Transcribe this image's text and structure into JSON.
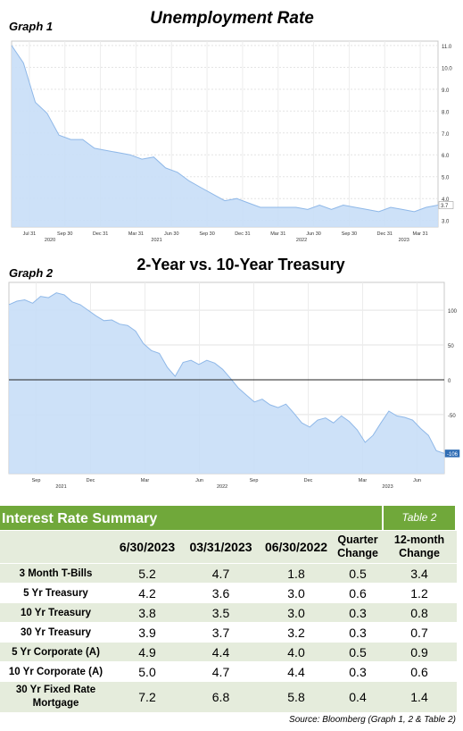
{
  "graph1": {
    "label": "Graph 1",
    "title": "Unemployment Rate",
    "chart_data": {
      "type": "area",
      "yticks": [
        3.0,
        4.0,
        5.0,
        6.0,
        7.0,
        8.0,
        9.0,
        10.0,
        11.0
      ],
      "ylim": [
        2.7,
        11.2
      ],
      "last_value_label": "3.7",
      "xticks": [
        "Jul 31",
        "Sep 30",
        "Dec 31",
        "Mar 31",
        "Jun 30",
        "Sep 30",
        "Dec 31",
        "Mar 31",
        "Jun 30",
        "Sep 30",
        "Dec 31",
        "Mar 31"
      ],
      "year_labels": [
        "2020",
        "2021",
        "2022",
        "2023"
      ],
      "values": [
        11.0,
        10.2,
        8.4,
        7.9,
        6.9,
        6.7,
        6.7,
        6.3,
        6.2,
        6.1,
        6.0,
        5.8,
        5.9,
        5.4,
        5.2,
        4.8,
        4.5,
        4.2,
        3.9,
        4.0,
        3.8,
        3.6,
        3.6,
        3.6,
        3.6,
        3.5,
        3.7,
        3.5,
        3.7,
        3.6,
        3.5,
        3.4,
        3.6,
        3.5,
        3.4,
        3.6,
        3.7
      ]
    }
  },
  "graph2": {
    "label": "Graph 2",
    "title": "2-Year vs. 10-Year Treasury",
    "chart_data": {
      "type": "area",
      "yticks": [
        -50,
        0,
        50,
        100
      ],
      "ylim": [
        -135,
        140
      ],
      "last_value_label": "-106",
      "xticks": [
        "Sep",
        "Dec",
        "Mar",
        "Jun",
        "Sep",
        "Dec",
        "Mar",
        "Jun"
      ],
      "year_labels": [
        "2021",
        "2022",
        "2023"
      ],
      "values": [
        108,
        113,
        115,
        110,
        120,
        118,
        125,
        122,
        112,
        108,
        100,
        92,
        85,
        86,
        80,
        78,
        70,
        52,
        42,
        38,
        18,
        5,
        25,
        28,
        22,
        28,
        24,
        15,
        2,
        -12,
        -22,
        -32,
        -28,
        -36,
        -40,
        -35,
        -48,
        -62,
        -68,
        -58,
        -55,
        -62,
        -52,
        -60,
        -72,
        -90,
        -80,
        -62,
        -45,
        -52,
        -54,
        -58,
        -70,
        -80,
        -102,
        -106
      ]
    }
  },
  "table": {
    "title": "Interest Rate Summary",
    "tag": "Table 2",
    "headers": [
      "",
      "6/30/2023",
      "03/31/2023",
      "06/30/2022",
      "Quarter Change",
      "12-month Change"
    ],
    "rows": [
      {
        "label": "3 Month T-Bills",
        "values": [
          "5.2",
          "4.7",
          "1.8",
          "0.5",
          "3.4"
        ]
      },
      {
        "label": "5 Yr Treasury",
        "values": [
          "4.2",
          "3.6",
          "3.0",
          "0.6",
          "1.2"
        ]
      },
      {
        "label": "10 Yr Treasury",
        "values": [
          "3.8",
          "3.5",
          "3.0",
          "0.3",
          "0.8"
        ]
      },
      {
        "label": "30 Yr Treasury",
        "values": [
          "3.9",
          "3.7",
          "3.2",
          "0.3",
          "0.7"
        ]
      },
      {
        "label": "5 Yr Corporate (A)",
        "values": [
          "4.9",
          "4.4",
          "4.0",
          "0.5",
          "0.9"
        ]
      },
      {
        "label": "10 Yr Corporate (A)",
        "values": [
          "5.0",
          "4.7",
          "4.4",
          "0.3",
          "0.6"
        ]
      },
      {
        "label": "30 Yr Fixed Rate Mortgage",
        "values": [
          "7.2",
          "6.8",
          "5.8",
          "0.4",
          "1.4"
        ]
      }
    ]
  },
  "source": "Source: Bloomberg (Graph 1, 2  & Table 2)",
  "colors": {
    "area_fill": "#c8def7",
    "area_line": "#8fb8e8",
    "table_green": "#70a83a",
    "table_band": "#e5ecdc"
  }
}
